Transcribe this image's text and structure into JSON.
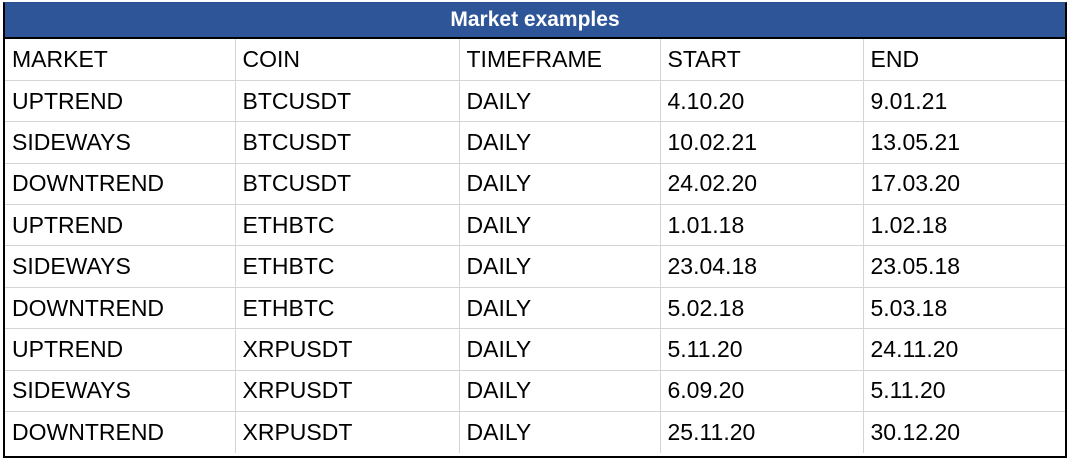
{
  "table": {
    "title": "Market examples",
    "headers": [
      "MARKET",
      "COIN",
      "TIMEFRAME",
      "START",
      "END"
    ],
    "rows": [
      [
        "UPTREND",
        "BTCUSDT",
        "DAILY",
        "4.10.20",
        "9.01.21"
      ],
      [
        "SIDEWAYS",
        "BTCUSDT",
        "DAILY",
        "10.02.21",
        "13.05.21"
      ],
      [
        "DOWNTREND",
        "BTCUSDT",
        "DAILY",
        "24.02.20",
        "17.03.20"
      ],
      [
        "UPTREND",
        "ETHBTC",
        "DAILY",
        "1.01.18",
        "1.02.18"
      ],
      [
        "SIDEWAYS",
        "ETHBTC",
        "DAILY",
        "23.04.18",
        "23.05.18"
      ],
      [
        "DOWNTREND",
        "ETHBTC",
        "DAILY",
        "5.02.18",
        "5.03.18"
      ],
      [
        "UPTREND",
        "XRPUSDT",
        "DAILY",
        "5.11.20",
        "24.11.20"
      ],
      [
        "SIDEWAYS",
        "XRPUSDT",
        "DAILY",
        "6.09.20",
        "5.11.20"
      ],
      [
        "DOWNTREND",
        "XRPUSDT",
        "DAILY",
        "25.11.20",
        "30.12.20"
      ]
    ]
  },
  "colors": {
    "title_background": "#2d5597",
    "title_text": "#ffffff",
    "grid_lines": "#d4d4d4",
    "outer_border": "#000000"
  }
}
